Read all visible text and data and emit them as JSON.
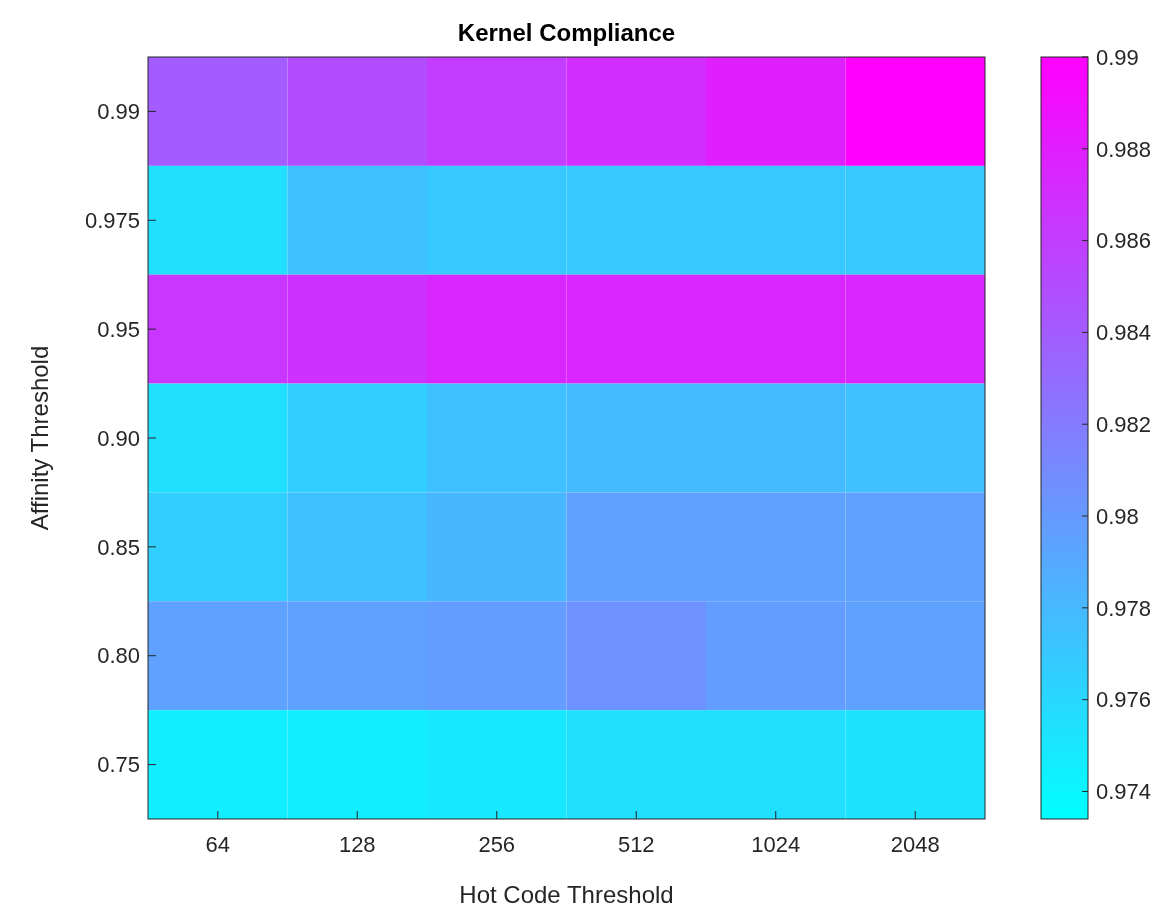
{
  "chart_data": {
    "type": "heatmap",
    "title": "Kernel Compliance",
    "xlabel": "Hot Code Threshold",
    "ylabel": "Affinity Threshold",
    "categories": [
      "64",
      "128",
      "256",
      "512",
      "1024",
      "2048"
    ],
    "y_categories": [
      "0.99",
      "0.975",
      "0.95",
      "0.90",
      "0.85",
      "0.80",
      "0.75"
    ],
    "cells": [
      [
        0.984,
        0.985,
        0.986,
        0.987,
        0.988,
        0.99
      ],
      [
        0.9755,
        0.9775,
        0.977,
        0.977,
        0.977,
        0.977
      ],
      [
        0.9865,
        0.9868,
        0.9875,
        0.9875,
        0.9875,
        0.9875
      ],
      [
        0.9755,
        0.9765,
        0.9775,
        0.9778,
        0.9778,
        0.9775
      ],
      [
        0.9765,
        0.9775,
        0.978,
        0.9795,
        0.9795,
        0.9795
      ],
      [
        0.9795,
        0.9795,
        0.9798,
        0.9805,
        0.9798,
        0.9795
      ],
      [
        0.9745,
        0.9745,
        0.9748,
        0.9755,
        0.9755,
        0.9752
      ]
    ],
    "clim": [
      0.9734,
      0.99
    ],
    "cticks": [
      0.974,
      0.976,
      0.978,
      0.98,
      0.982,
      0.984,
      0.986,
      0.988,
      0.99
    ]
  }
}
